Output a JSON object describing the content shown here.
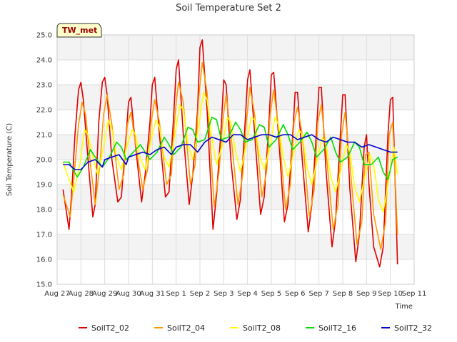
{
  "chart_data": {
    "type": "line",
    "title": "Soil Temperature Set 2",
    "xlabel": "Time",
    "ylabel": "Soil Temperature (C)",
    "badge": "TW_met",
    "ylim": [
      15.0,
      25.0
    ],
    "xlim": [
      0,
      15
    ],
    "y_ticks": [
      "15.0",
      "16.0",
      "17.0",
      "18.0",
      "19.0",
      "20.0",
      "21.0",
      "22.0",
      "23.0",
      "24.0",
      "25.0"
    ],
    "x_ticks": [
      "Aug 27",
      "Aug 28",
      "Aug 29",
      "Aug 30",
      "Aug 31",
      "Sep 1",
      "Sep 2",
      "Sep 3",
      "Sep 4",
      "Sep 5",
      "Sep 6",
      "Sep 7",
      "Sep 8",
      "Sep 9",
      "Sep 10",
      "Sep 11"
    ],
    "grid": true,
    "legend_position": "bottom",
    "series": [
      {
        "name": "SoilT2_02",
        "color": "#dd0000",
        "x": [
          0.25,
          0.5,
          0.6,
          0.75,
          0.9,
          1.0,
          1.1,
          1.3,
          1.5,
          1.6,
          1.75,
          1.9,
          2.0,
          2.1,
          2.3,
          2.55,
          2.7,
          2.9,
          3.0,
          3.1,
          3.3,
          3.55,
          3.7,
          3.9,
          4.0,
          4.1,
          4.3,
          4.55,
          4.7,
          4.9,
          5.0,
          5.1,
          5.3,
          5.55,
          5.7,
          5.9,
          6.0,
          6.1,
          6.3,
          6.55,
          6.7,
          6.9,
          7.0,
          7.1,
          7.3,
          7.55,
          7.7,
          7.9,
          8.0,
          8.1,
          8.3,
          8.55,
          8.7,
          8.9,
          9.0,
          9.1,
          9.3,
          9.55,
          9.7,
          9.9,
          10.0,
          10.1,
          10.3,
          10.55,
          10.7,
          10.9,
          11.0,
          11.1,
          11.3,
          11.55,
          11.7,
          11.9,
          12.0,
          12.1,
          12.3,
          12.55,
          12.7,
          12.9,
          13.0,
          13.1,
          13.3,
          13.55,
          13.7,
          13.9,
          14.0,
          14.1,
          14.3
        ],
        "y": [
          18.8,
          17.2,
          18.5,
          21.0,
          22.8,
          23.1,
          22.4,
          20.0,
          17.7,
          18.2,
          21.5,
          23.1,
          23.3,
          22.6,
          20.0,
          18.3,
          18.5,
          21.0,
          22.3,
          22.5,
          20.5,
          18.3,
          19.4,
          21.5,
          23.0,
          23.3,
          21.0,
          18.5,
          18.7,
          21.8,
          23.6,
          24.0,
          21.0,
          18.2,
          19.4,
          22.0,
          24.5,
          24.8,
          22.0,
          17.2,
          18.6,
          21.4,
          23.2,
          23.0,
          20.0,
          17.6,
          18.4,
          21.5,
          23.2,
          23.6,
          21.0,
          17.8,
          18.5,
          21.5,
          23.4,
          23.5,
          21.0,
          17.5,
          18.2,
          21.0,
          22.7,
          22.7,
          20.0,
          17.1,
          18.2,
          21.2,
          22.9,
          22.9,
          19.5,
          16.5,
          17.6,
          21.0,
          22.6,
          22.6,
          18.8,
          15.9,
          17.0,
          20.5,
          21.0,
          19.0,
          16.5,
          15.7,
          16.5,
          21.0,
          22.4,
          22.5,
          15.8
        ]
      },
      {
        "name": "SoilT2_04",
        "color": "#ff9900",
        "x": [
          0.25,
          0.55,
          0.7,
          0.9,
          1.05,
          1.2,
          1.4,
          1.6,
          1.8,
          1.95,
          2.1,
          2.3,
          2.6,
          2.8,
          2.95,
          3.1,
          3.3,
          3.6,
          3.8,
          3.95,
          4.1,
          4.3,
          4.6,
          4.8,
          4.95,
          5.1,
          5.3,
          5.6,
          5.8,
          5.95,
          6.1,
          6.3,
          6.6,
          6.8,
          6.95,
          7.1,
          7.3,
          7.6,
          7.8,
          7.95,
          8.1,
          8.3,
          8.6,
          8.8,
          8.95,
          9.1,
          9.3,
          9.6,
          9.8,
          9.95,
          10.1,
          10.3,
          10.6,
          10.8,
          10.95,
          11.1,
          11.3,
          11.6,
          11.8,
          11.95,
          12.1,
          12.3,
          12.6,
          12.8,
          12.95,
          13.1,
          13.3,
          13.6,
          13.8,
          13.95,
          14.1,
          14.3
        ],
        "y": [
          18.6,
          17.7,
          19.2,
          21.4,
          22.3,
          21.8,
          19.8,
          18.2,
          19.8,
          21.8,
          22.6,
          21.4,
          18.8,
          19.4,
          21.4,
          21.9,
          20.6,
          18.8,
          19.6,
          21.5,
          22.4,
          21.5,
          19.0,
          19.4,
          21.8,
          23.1,
          22.3,
          19.0,
          19.8,
          22.5,
          23.9,
          22.7,
          18.1,
          19.5,
          21.5,
          22.6,
          21.0,
          18.2,
          19.4,
          21.5,
          22.9,
          21.8,
          18.5,
          19.5,
          21.8,
          22.8,
          21.3,
          18.0,
          19.0,
          21.5,
          22.1,
          21.0,
          17.7,
          18.8,
          21.5,
          22.2,
          20.3,
          17.2,
          18.2,
          21.0,
          21.9,
          19.8,
          16.6,
          17.5,
          20.2,
          20.3,
          17.8,
          16.4,
          17.5,
          21.0,
          21.5,
          17.0
        ]
      },
      {
        "name": "SoilT2_08",
        "color": "#ffff00",
        "x": [
          0.25,
          0.5,
          0.7,
          0.95,
          1.15,
          1.3,
          1.5,
          1.7,
          1.95,
          2.15,
          2.3,
          2.5,
          2.7,
          2.95,
          3.15,
          3.3,
          3.5,
          3.7,
          3.95,
          4.15,
          4.3,
          4.5,
          4.7,
          4.95,
          5.15,
          5.3,
          5.5,
          5.7,
          5.95,
          6.15,
          6.3,
          6.5,
          6.7,
          6.95,
          7.15,
          7.3,
          7.5,
          7.7,
          7.95,
          8.15,
          8.3,
          8.5,
          8.7,
          8.95,
          9.15,
          9.3,
          9.5,
          9.7,
          9.95,
          10.15,
          10.3,
          10.5,
          10.7,
          10.95,
          11.15,
          11.3,
          11.5,
          11.7,
          11.95,
          12.15,
          12.3,
          12.5,
          12.7,
          12.95,
          13.15,
          13.3,
          13.5,
          13.7,
          13.95,
          14.15,
          14.3
        ],
        "y": [
          19.9,
          19.2,
          18.7,
          19.8,
          21.2,
          21.0,
          20.1,
          19.4,
          20.5,
          21.6,
          21.2,
          20.1,
          19.6,
          20.6,
          21.2,
          21.0,
          20.0,
          19.6,
          20.8,
          21.6,
          21.3,
          20.1,
          19.7,
          21.0,
          22.2,
          22.0,
          20.6,
          20.0,
          21.3,
          22.7,
          22.4,
          20.9,
          19.8,
          20.6,
          21.7,
          21.5,
          20.3,
          19.5,
          20.6,
          21.7,
          21.6,
          20.2,
          19.6,
          20.5,
          21.7,
          21.4,
          20.1,
          19.3,
          20.3,
          21.2,
          21.0,
          19.7,
          19.0,
          20.1,
          20.9,
          20.6,
          19.3,
          18.7,
          19.7,
          20.6,
          20.3,
          18.9,
          18.3,
          19.4,
          20.2,
          19.8,
          18.4,
          17.9,
          19.3,
          20.5,
          19.4
        ]
      },
      {
        "name": "SoilT2_16",
        "color": "#00dd00",
        "x": [
          0.25,
          0.5,
          0.85,
          1.1,
          1.4,
          1.6,
          1.9,
          2.2,
          2.5,
          2.7,
          2.9,
          3.2,
          3.5,
          3.7,
          3.9,
          4.2,
          4.5,
          4.7,
          4.9,
          5.2,
          5.5,
          5.7,
          5.9,
          6.2,
          6.5,
          6.7,
          6.9,
          7.2,
          7.5,
          7.7,
          7.9,
          8.2,
          8.5,
          8.7,
          8.9,
          9.2,
          9.5,
          9.7,
          9.9,
          10.2,
          10.5,
          10.7,
          10.9,
          11.2,
          11.5,
          11.7,
          11.9,
          12.2,
          12.5,
          12.7,
          12.9,
          13.2,
          13.5,
          13.7,
          13.9,
          14.1,
          14.3
        ],
        "y": [
          19.9,
          19.9,
          19.3,
          19.7,
          20.4,
          20.1,
          19.7,
          20.1,
          20.7,
          20.5,
          20.0,
          20.3,
          20.6,
          20.3,
          20.0,
          20.3,
          20.9,
          20.6,
          20.2,
          20.5,
          21.3,
          21.2,
          20.7,
          20.8,
          21.7,
          21.6,
          20.8,
          20.9,
          21.5,
          21.2,
          20.7,
          20.8,
          21.4,
          21.3,
          20.5,
          20.8,
          21.4,
          21.0,
          20.4,
          20.7,
          21.1,
          20.7,
          20.1,
          20.4,
          20.9,
          20.3,
          19.9,
          20.1,
          20.7,
          20.5,
          19.8,
          19.8,
          20.1,
          19.5,
          19.2,
          20.0,
          20.1
        ]
      },
      {
        "name": "SoilT2_32",
        "color": "#0000cc",
        "x": [
          0.25,
          0.5,
          0.75,
          1.0,
          1.3,
          1.6,
          1.9,
          2.0,
          2.3,
          2.6,
          2.9,
          3.0,
          3.3,
          3.6,
          3.9,
          4.2,
          4.5,
          4.8,
          5.0,
          5.3,
          5.6,
          5.9,
          6.2,
          6.5,
          6.8,
          7.1,
          7.4,
          7.7,
          8.0,
          8.3,
          8.6,
          8.9,
          9.2,
          9.5,
          9.8,
          10.1,
          10.4,
          10.7,
          11.0,
          11.3,
          11.6,
          11.9,
          12.2,
          12.5,
          12.8,
          13.1,
          13.4,
          13.7,
          14.0,
          14.3
        ],
        "y": [
          19.8,
          19.8,
          19.6,
          19.6,
          19.9,
          20.0,
          19.7,
          20.0,
          20.1,
          20.2,
          19.8,
          20.1,
          20.2,
          20.3,
          20.2,
          20.4,
          20.5,
          20.2,
          20.5,
          20.6,
          20.6,
          20.3,
          20.7,
          20.9,
          20.8,
          20.7,
          21.0,
          21.0,
          20.8,
          20.9,
          21.0,
          21.0,
          20.9,
          21.0,
          21.0,
          20.8,
          20.9,
          21.0,
          20.8,
          20.7,
          20.9,
          20.8,
          20.7,
          20.7,
          20.5,
          20.6,
          20.5,
          20.4,
          20.3,
          20.3
        ]
      }
    ]
  }
}
